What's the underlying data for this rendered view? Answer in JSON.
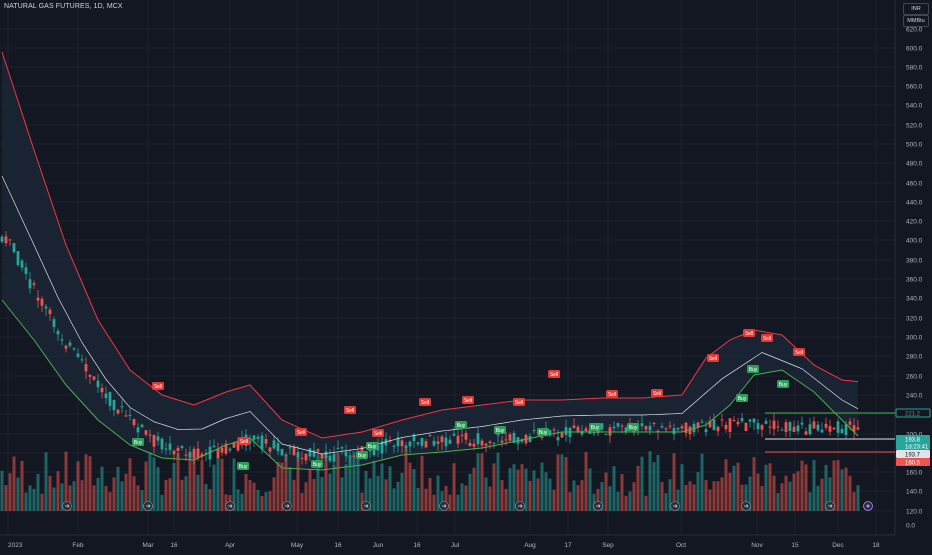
{
  "header": {
    "title": "NATURAL GAS FUTURES, 1D, MCX"
  },
  "currency_badges": [
    "INR",
    "MMBtu"
  ],
  "axis": {
    "price_ticks": [
      "620.0",
      "600.0",
      "580.0",
      "560.0",
      "540.0",
      "520.0",
      "500.0",
      "480.0",
      "460.0",
      "440.0",
      "420.0",
      "400.0",
      "380.0",
      "360.0",
      "340.0",
      "320.0",
      "300.0",
      "280.0",
      "260.0",
      "240.0",
      "220.0",
      "200.0",
      "180.0",
      "160.0",
      "140.0",
      "120.0",
      "0.0"
    ],
    "time_labels": [
      "2023",
      "Feb",
      "Mar",
      "16",
      "Apr",
      "May",
      "16",
      "Jun",
      "16",
      "Jul",
      "Aug",
      "17",
      "Sep",
      "Oct",
      "Nov",
      "15",
      "Dec",
      "18"
    ]
  },
  "price_labels": [
    {
      "text": "221.2",
      "color": "#26a69a",
      "kind": "line"
    },
    {
      "text": "193.8",
      "color": "#26a69a",
      "kind": "last"
    },
    {
      "text": "1d:23:41",
      "color": "#26a69a",
      "kind": "countdown"
    },
    {
      "text": "193.7",
      "color": "#e0e3eb",
      "kind": "line"
    },
    {
      "text": "180.5",
      "color": "#ef5350",
      "kind": "line"
    }
  ],
  "signals": [
    {
      "label": "Sell",
      "type": "sell"
    },
    {
      "label": "Buy",
      "type": "buy"
    },
    {
      "label": "Sell",
      "type": "sell"
    },
    {
      "label": "Buy",
      "type": "buy"
    },
    {
      "label": "Sell",
      "type": "sell"
    },
    {
      "label": "Buy",
      "type": "buy"
    },
    {
      "label": "Sell",
      "type": "sell"
    },
    {
      "label": "Buy",
      "type": "buy"
    },
    {
      "label": "Sell",
      "type": "sell"
    },
    {
      "label": "Buy",
      "type": "buy"
    },
    {
      "label": "Sell",
      "type": "sell"
    },
    {
      "label": "Buy",
      "type": "buy"
    },
    {
      "label": "Sell",
      "type": "sell"
    },
    {
      "label": "Buy",
      "type": "buy"
    },
    {
      "label": "Sell",
      "type": "sell"
    },
    {
      "label": "Buy",
      "type": "buy"
    },
    {
      "label": "Sell",
      "type": "sell"
    },
    {
      "label": "Buy",
      "type": "buy"
    },
    {
      "label": "Sell",
      "type": "sell"
    },
    {
      "label": "Buy",
      "type": "buy"
    },
    {
      "label": "Sell",
      "type": "sell"
    },
    {
      "label": "Sell",
      "type": "sell"
    },
    {
      "label": "Buy",
      "type": "buy"
    },
    {
      "label": "Sell",
      "type": "sell"
    },
    {
      "label": "Buy",
      "type": "buy"
    },
    {
      "label": "Sell",
      "type": "sell"
    },
    {
      "label": "Buy",
      "type": "buy"
    },
    {
      "label": "Sell",
      "type": "sell"
    }
  ],
  "colors": {
    "background": "#131722",
    "grid": "#1e222d",
    "axis_text": "#b2b5be",
    "up": "#26a69a",
    "down": "#ef5350",
    "upper_band": "#f23645",
    "lower_band": "#4caf50",
    "basis": "#e0e3eb",
    "band_fill": "#1b2533",
    "buy_label": "#2e9e5a",
    "sell_label": "#e53935"
  },
  "icons": [
    "event-icon",
    "settings-icon"
  ]
}
